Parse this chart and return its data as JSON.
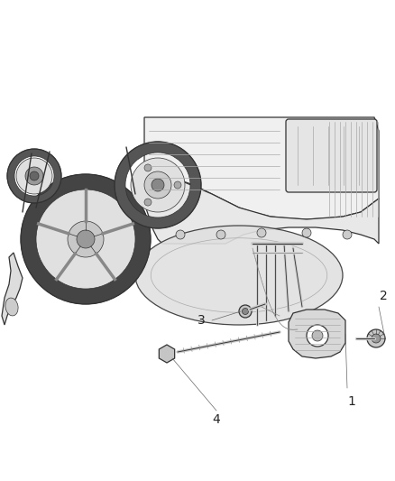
{
  "background_color": "#ffffff",
  "fig_width": 4.38,
  "fig_height": 5.33,
  "dpi": 100,
  "callout_numbers": [
    "1",
    "2",
    "3",
    "4"
  ],
  "line_color": "#333333",
  "text_color": "#222222",
  "font_size": 9,
  "engine_fill": "#f5f5f5",
  "dark_fill": "#888888",
  "mid_fill": "#cccccc",
  "light_fill": "#eeeeee"
}
